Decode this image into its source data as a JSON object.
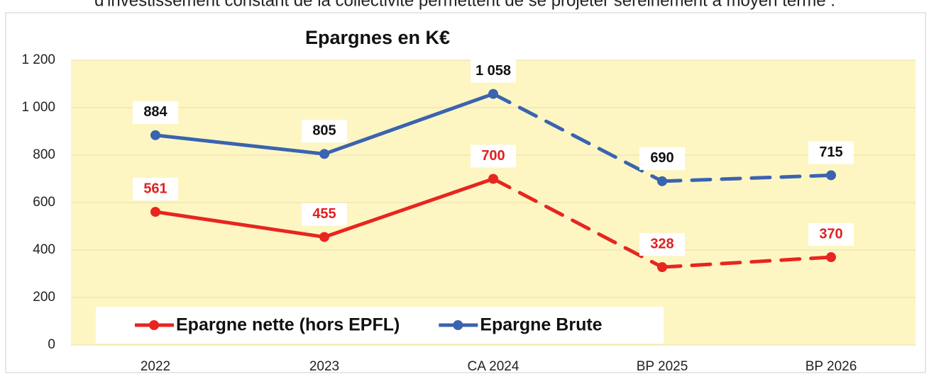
{
  "caption_top": "d'investissement constant de la collectivité permettent de se projeter sereinement à moyen terme .",
  "chart_data": {
    "type": "line",
    "title": "Epargnes en K€",
    "categories": [
      "2022",
      "2023",
      "CA 2024",
      "BP 2025",
      "BP 2026"
    ],
    "segment_styles": [
      "solid",
      "solid",
      "dashed",
      "dashed"
    ],
    "series": [
      {
        "name": "Epargne nette (hors EPFL)",
        "color": "#e8251f",
        "label_color": "#e02020",
        "values": [
          561,
          455,
          700,
          328,
          370
        ]
      },
      {
        "name": "Epargne Brute",
        "color": "#3a63b0",
        "label_color": "#111111",
        "values": [
          884,
          805,
          1058,
          690,
          715
        ],
        "value_labels": [
          "884",
          "805",
          "1 058",
          "690",
          "715"
        ]
      }
    ],
    "ylim": [
      0,
      1200
    ],
    "yticks": [
      0,
      200,
      400,
      600,
      800,
      {
        "value": 1000,
        "label": "1 000"
      },
      {
        "value": 1200,
        "label": "1 200"
      }
    ],
    "grid": true,
    "legend": "bottom-left",
    "plot_background": "#fdf6c3"
  }
}
